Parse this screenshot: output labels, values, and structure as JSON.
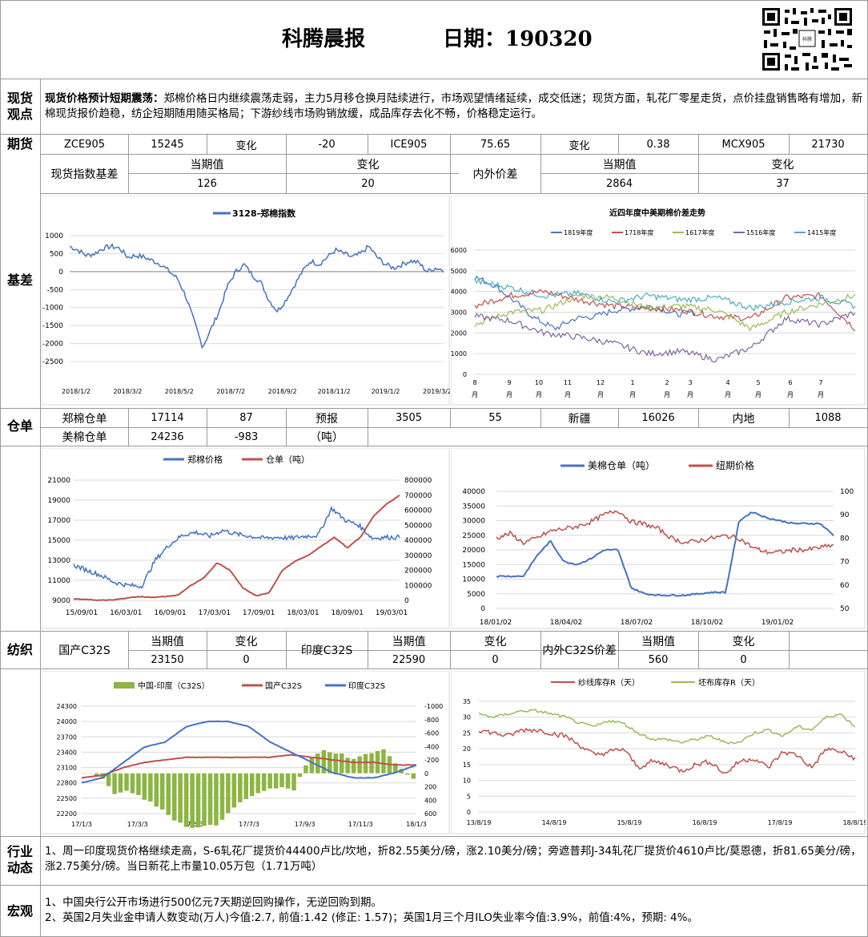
{
  "header": {
    "title": "科腾晨报",
    "date_label": "日期：190320"
  },
  "sections": {
    "spot": "现货观点",
    "futures": "期货",
    "basis": "基差",
    "warehouse": "仓单",
    "textile": "纺织",
    "industry": "行业动态",
    "macro": "宏观"
  },
  "spot_view": {
    "headline": "现货价格预计短期震荡：",
    "body": "郑棉价格日内继续震荡走弱，主力5月移仓换月陆续进行，市场观望情绪延续，成交低迷；现货方面，轧花厂零星走货，点价挂盘销售略有增加，新棉现货报价趋稳，纺企短期随用随买格局；下游纱线市场购销放缓，成品库存去化不畅，价格稳定运行。"
  },
  "futures": {
    "row1": [
      "ZCE905",
      "15245",
      "变化",
      "-20",
      "ICE905",
      "75.65",
      "变化",
      "0.38",
      "MCX905",
      "21730"
    ],
    "index_basis_label": "现货指数基差",
    "current_label": "当期值",
    "change_label": "变化",
    "index_basis_current": "126",
    "index_basis_change": "20",
    "spread_label": "内外价差",
    "spread_current": "2864",
    "spread_change": "37"
  },
  "warehouse": {
    "row1": [
      "郑棉仓单",
      "17114",
      "87",
      "预报",
      "3505",
      "55",
      "新疆",
      "16026",
      "内地",
      "1088"
    ],
    "row2": [
      "美棉仓单",
      "24236",
      "-983",
      "（吨）"
    ]
  },
  "textile": {
    "row_labels": [
      "当期值",
      "变化",
      "当期值",
      "变化",
      "当期值",
      "变化"
    ],
    "domestic_label": "国产C32S",
    "domestic_current": "23150",
    "domestic_change": "0",
    "india_label": "印度C32S",
    "india_current": "22590",
    "india_change": "0",
    "spread_label": "内外C32S价差",
    "spread_current": "560",
    "spread_change": "0"
  },
  "industry": {
    "text": "1、周一印度现货价格继续走高，S-6轧花厂提货价44400卢比/坎地，折82.55美分/磅，涨2.10美分/磅；旁遮普邦J-34轧花厂提货价4610卢比/莫恩德，折81.65美分/磅，涨2.75美分/磅。当日新花上市量10.05万包（1.71万吨）"
  },
  "macro": {
    "line1": "1、中国央行公开市场进行500亿元7天期逆回购操作，无逆回购到期。",
    "line2": "2、英国2月失业金申请人数变动(万人)今值:2.7, 前值:1.42 (修正: 1.57)；英国1月三个月ILO失业率今值:3.9%，前值:4%，预期: 4%。"
  },
  "chart_data": [
    {
      "type": "line",
      "title": "",
      "series": [
        {
          "name": "3128-郑棉指数",
          "color": "#4472c4",
          "values": [
            700,
            600,
            450,
            500,
            650,
            700,
            650,
            400,
            450,
            400,
            300,
            200,
            0,
            -200,
            -700,
            -1400,
            -2100,
            -1600,
            -1100,
            -400,
            0,
            200,
            -100,
            -300,
            -800,
            -1100,
            -800,
            -400,
            0,
            300,
            200,
            400,
            600,
            500,
            400,
            500,
            700,
            400,
            200,
            100,
            200,
            300,
            250,
            0,
            100,
            50
          ]
        }
      ],
      "xticks": [
        "2018/1/2",
        "2018/3/2",
        "2018/5/2",
        "2018/7/2",
        "2018/9/2",
        "2018/11/2",
        "2019/1/2",
        "2019/3/2"
      ],
      "yticks": [
        "1000",
        "500",
        "0",
        "-500",
        "-1000",
        "-1500",
        "-2000",
        "-2500"
      ],
      "ylim": [
        -2500,
        1000
      ]
    },
    {
      "type": "line",
      "title": "近四年度中美期棉价差走势",
      "series": [
        {
          "name": "1819年度",
          "color": "#4472c4"
        },
        {
          "name": "1718年度",
          "color": "#c0504d"
        },
        {
          "name": "1617年度",
          "color": "#9bbb59"
        },
        {
          "name": "1516年度",
          "color": "#8064a2"
        },
        {
          "name": "1415年度",
          "color": "#4bacc6"
        }
      ],
      "xticks": [
        "8月",
        "9月",
        "10月",
        "11月",
        "12月",
        "1月",
        "2月",
        "3月",
        "4月",
        "5月",
        "6月",
        "7月"
      ],
      "yticks": [
        "6000",
        "5000",
        "4000",
        "3000",
        "2000",
        "1000",
        "0"
      ],
      "ylim": [
        0,
        6000
      ]
    },
    {
      "type": "line",
      "title": "",
      "series": [
        {
          "name": "郑棉价格",
          "color": "#4472c4"
        },
        {
          "name": "仓单（吨）",
          "color": "#c0504d"
        }
      ],
      "xticks": [
        "15/09/01",
        "16/03/01",
        "16/09/01",
        "17/03/01",
        "17/09/01",
        "18/03/01",
        "18/09/01",
        "19/03/01"
      ],
      "yticks_left": [
        "21000",
        "19000",
        "17000",
        "15000",
        "13000",
        "11000",
        "9000"
      ],
      "yticks_right": [
        "800000",
        "700000",
        "600000",
        "500000",
        "400000",
        "300000",
        "200000",
        "100000",
        "0"
      ]
    },
    {
      "type": "line",
      "title": "",
      "series": [
        {
          "name": "美棉仓单（吨）",
          "color": "#4472c4"
        },
        {
          "name": "纽期价格",
          "color": "#c0504d"
        }
      ],
      "xticks": [
        "18/01/02",
        "18/04/02",
        "18/07/02",
        "18/10/02",
        "19/01/02"
      ],
      "yticks_left": [
        "40000",
        "35000",
        "30000",
        "25000",
        "20000",
        "15000",
        "10000",
        "5000",
        "0"
      ],
      "yticks_right": [
        "100",
        "90",
        "80",
        "70",
        "60",
        "50"
      ]
    },
    {
      "type": "bar",
      "title": "",
      "series": [
        {
          "name": "中国-印度（C32S）",
          "color": "#8db542"
        },
        {
          "name": "国产C32S",
          "color": "#c0504d"
        },
        {
          "name": "印度C32S",
          "color": "#4472c4"
        }
      ],
      "xticks": [
        "17/1/3",
        "17/3/3",
        "17/5/3",
        "17/7/3",
        "17/9/3",
        "17/11/3",
        "18/1/3"
      ],
      "yticks_left": [
        "24300",
        "24000",
        "23700",
        "23400",
        "23100",
        "22800",
        "22500",
        "22200"
      ],
      "yticks_right": [
        "-1000",
        "-800",
        "-600",
        "-400",
        "-200",
        "0",
        "200",
        "400",
        "600"
      ]
    },
    {
      "type": "line",
      "title": "",
      "series": [
        {
          "name": "纱线库存R（天）",
          "color": "#c0504d"
        },
        {
          "name": "坯布库存R（天）",
          "color": "#9bbb59"
        }
      ],
      "xticks": [
        "13/8/19",
        "14/8/19",
        "15/8/19",
        "16/8/19",
        "17/8/19",
        "18/8/19"
      ],
      "yticks": [
        "35",
        "30",
        "25",
        "20",
        "15",
        "10",
        "5",
        "0"
      ],
      "ylim": [
        0,
        35
      ]
    }
  ]
}
